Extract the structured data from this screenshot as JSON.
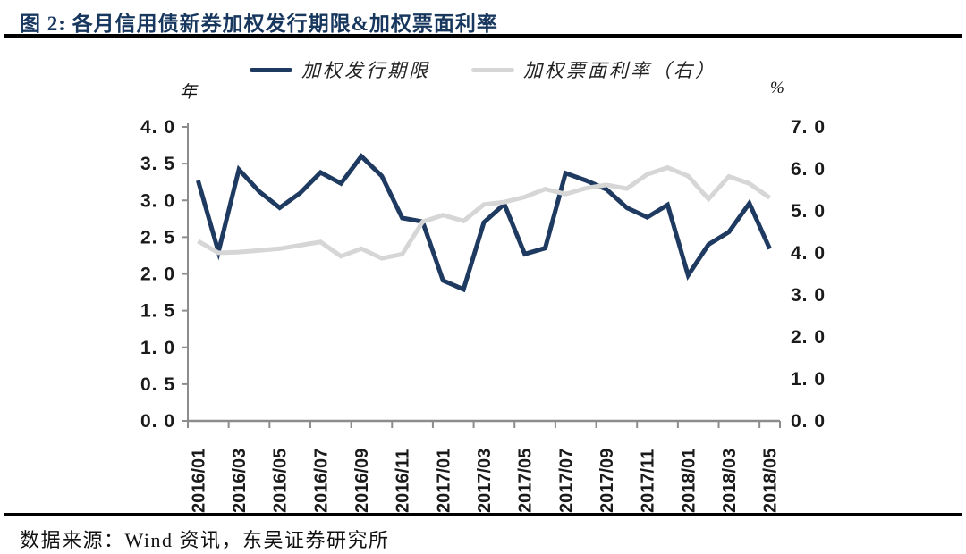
{
  "header": {
    "title": "图 2:  各月信用债新券加权发行期限&加权票面利率"
  },
  "legend": [
    {
      "label": "加权发行期限",
      "color": "#1F3A60"
    },
    {
      "label": "加权票面利率（右）",
      "color": "#D6D6D6"
    }
  ],
  "footer": {
    "source": "数据来源：Wind 资讯，东吴证券研究所"
  },
  "colors": {
    "title": "#17375E",
    "axis": "#8C8C8C",
    "tick_text": "#1A1A1A",
    "series_term": "#1F3A60",
    "series_coupon": "#D6D6D6"
  },
  "chart_data": {
    "type": "line",
    "title": "各月信用债新券加权发行期限&加权票面利率",
    "grid": false,
    "legend_position": "top",
    "left_axis": {
      "unit": "年",
      "min": 0,
      "max": 4,
      "tick_labels": [
        "4. 0",
        "3. 5",
        "3. 0",
        "2. 5",
        "2. 0",
        "1. 5",
        "1. 0",
        "0. 5",
        "0. 0"
      ]
    },
    "right_axis": {
      "unit": "%",
      "min": 0,
      "max": 7,
      "tick_labels": [
        "7. 0",
        "6. 0",
        "5. 0",
        "4. 0",
        "3. 0",
        "2. 0",
        "1. 0",
        "0. 0"
      ]
    },
    "categories": [
      "2016/01",
      "2016/02",
      "2016/03",
      "2016/04",
      "2016/05",
      "2016/06",
      "2016/07",
      "2016/08",
      "2016/09",
      "2016/10",
      "2016/11",
      "2016/12",
      "2017/01",
      "2017/02",
      "2017/03",
      "2017/04",
      "2017/05",
      "2017/06",
      "2017/07",
      "2017/08",
      "2017/09",
      "2017/10",
      "2017/11",
      "2017/12",
      "2018/01",
      "2018/02",
      "2018/03",
      "2018/04",
      "2018/05"
    ],
    "x_tick_labels": [
      "2016/01",
      "2016/03",
      "2016/05",
      "2016/07",
      "2016/09",
      "2016/11",
      "2017/01",
      "2017/03",
      "2017/05",
      "2017/07",
      "2017/09",
      "2017/11",
      "2018/01",
      "2018/03",
      "2018/05"
    ],
    "series": [
      {
        "name": "加权发行期限",
        "axis": "left",
        "color": "#1F3A60",
        "values": [
          3.27,
          2.3,
          3.42,
          3.12,
          2.9,
          3.1,
          3.38,
          3.23,
          3.6,
          3.33,
          2.76,
          2.71,
          1.91,
          1.79,
          2.7,
          2.95,
          2.27,
          2.35,
          3.37,
          3.27,
          3.15,
          2.9,
          2.77,
          2.94,
          1.98,
          2.4,
          2.57,
          2.96,
          2.34
        ]
      },
      {
        "name": "加权票面利率（右）",
        "axis": "right",
        "color": "#D6D6D6",
        "values": [
          4.28,
          4.0,
          4.02,
          4.06,
          4.1,
          4.18,
          4.26,
          3.92,
          4.1,
          3.87,
          3.97,
          4.74,
          4.9,
          4.76,
          5.15,
          5.21,
          5.33,
          5.52,
          5.4,
          5.54,
          5.62,
          5.53,
          5.87,
          6.03,
          5.83,
          5.28,
          5.82,
          5.65,
          5.31
        ]
      }
    ]
  }
}
